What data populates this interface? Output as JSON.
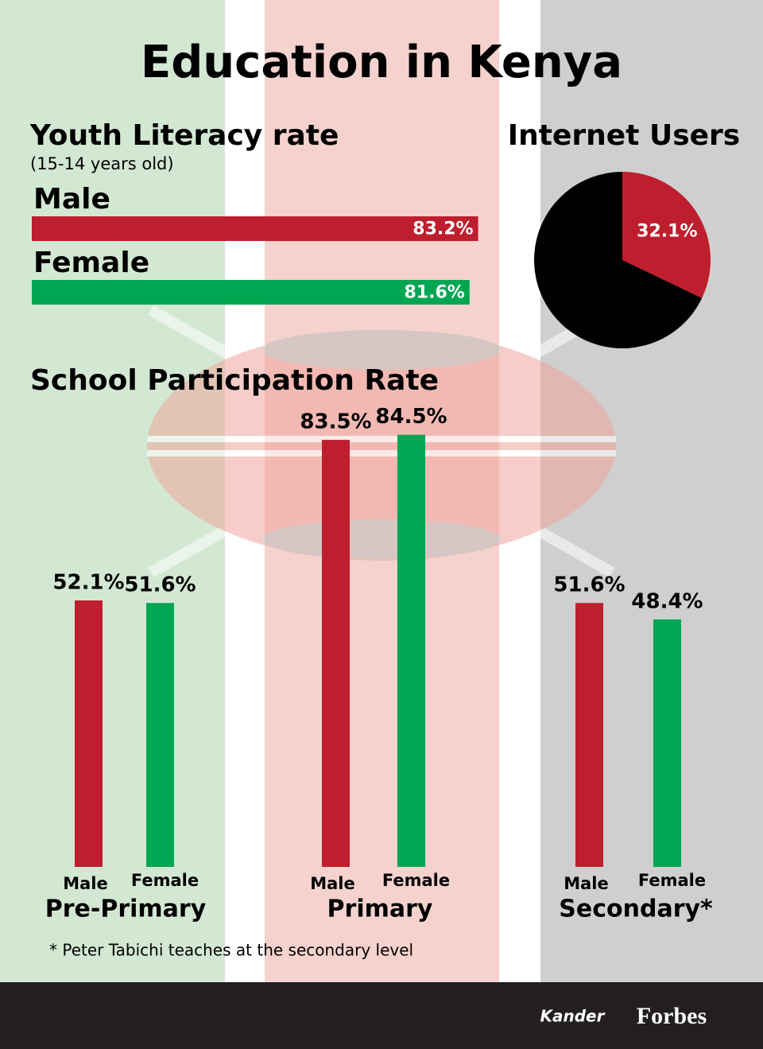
{
  "title": "Education in Kenya",
  "footnote": "* Peter Tabichi teaches at the secondary level",
  "footer": {
    "logo": "Kander",
    "brand": "Forbes"
  },
  "chart_data": [
    {
      "type": "barh",
      "title": "Youth Literacy rate",
      "subtitle": "(15-14 years old)",
      "categories": [
        "Male",
        "Female"
      ],
      "values": [
        83.2,
        81.6
      ],
      "value_labels": [
        "83.2%",
        "81.6%"
      ],
      "colors": [
        "#be1e2d",
        "#00a651"
      ],
      "xlim": [
        0,
        100
      ]
    },
    {
      "type": "pie",
      "title": "Internet Users",
      "values": [
        32.1,
        67.9
      ],
      "value_labels": [
        "32.1%",
        null
      ],
      "colors": [
        "#be1e2d",
        "#000000"
      ]
    },
    {
      "type": "bar",
      "title": "School Participation Rate",
      "categories": [
        "Pre-Primary",
        "Primary",
        "Secondary*"
      ],
      "series": [
        {
          "name": "Male",
          "color": "#be1e2d",
          "values": [
            52.1,
            83.5,
            51.6
          ],
          "value_labels": [
            "52.1%",
            "83.5%",
            "51.6%"
          ]
        },
        {
          "name": "Female",
          "color": "#00a651",
          "values": [
            51.6,
            84.5,
            48.4
          ],
          "value_labels": [
            "51.6%",
            "84.5%",
            "48.4%"
          ]
        }
      ],
      "ylim": [
        0,
        100
      ]
    }
  ]
}
